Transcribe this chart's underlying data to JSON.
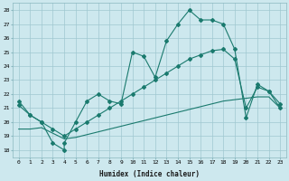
{
  "xlabel": "Humidex (Indice chaleur)",
  "ylabel": "",
  "xlim": [
    -0.5,
    23.5
  ],
  "ylim": [
    17.5,
    28.5
  ],
  "yticks": [
    18,
    19,
    20,
    21,
    22,
    23,
    24,
    25,
    26,
    27,
    28
  ],
  "xticks": [
    0,
    1,
    2,
    3,
    4,
    5,
    6,
    7,
    8,
    9,
    10,
    11,
    12,
    13,
    14,
    15,
    16,
    17,
    18,
    19,
    20,
    21,
    22,
    23
  ],
  "bg_color": "#cde8ee",
  "grid_color": "#a0c8d0",
  "line_color": "#1a7a6e",
  "line1_x": [
    0,
    1,
    2,
    3,
    4,
    4,
    5,
    6,
    7,
    8,
    9,
    10,
    11,
    12,
    13,
    14,
    15,
    16,
    17,
    18,
    19,
    20,
    21,
    22,
    23
  ],
  "line1_y": [
    21.5,
    20.5,
    20.0,
    18.5,
    18.0,
    18.5,
    20.0,
    21.5,
    22.0,
    21.5,
    21.3,
    25.0,
    24.7,
    23.2,
    25.8,
    27.0,
    28.0,
    27.3,
    27.3,
    27.0,
    25.2,
    20.3,
    22.7,
    22.2,
    21.3
  ],
  "line2_x": [
    0,
    1,
    2,
    3,
    4,
    5,
    6,
    7,
    8,
    9,
    10,
    11,
    12,
    13,
    14,
    15,
    16,
    17,
    18,
    19,
    20,
    21,
    22,
    23
  ],
  "line2_y": [
    21.2,
    20.5,
    20.0,
    19.5,
    19.0,
    19.5,
    20.0,
    20.5,
    21.0,
    21.5,
    22.0,
    22.5,
    23.0,
    23.5,
    24.0,
    24.5,
    24.8,
    25.1,
    25.2,
    24.5,
    21.0,
    22.5,
    22.2,
    21.0
  ],
  "line3_x": [
    0,
    1,
    2,
    3,
    4,
    5,
    6,
    7,
    8,
    9,
    10,
    11,
    12,
    13,
    14,
    15,
    16,
    17,
    18,
    19,
    20,
    21,
    22,
    23
  ],
  "line3_y": [
    19.5,
    19.5,
    19.6,
    19.2,
    18.8,
    18.9,
    19.1,
    19.3,
    19.5,
    19.7,
    19.9,
    20.1,
    20.3,
    20.5,
    20.7,
    20.9,
    21.1,
    21.3,
    21.5,
    21.6,
    21.7,
    21.8,
    21.8,
    21.0
  ]
}
